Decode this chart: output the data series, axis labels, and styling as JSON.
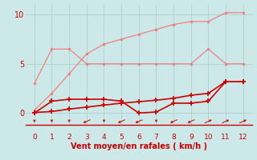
{
  "x": [
    0,
    1,
    2,
    3,
    4,
    5,
    6,
    7,
    8,
    9,
    10,
    11,
    12
  ],
  "line1_y": [
    3.0,
    6.5,
    6.5,
    5.0,
    5.0,
    5.0,
    5.0,
    5.0,
    5.0,
    5.0,
    6.5,
    5.0,
    5.0
  ],
  "line2_y": [
    0.3,
    2.0,
    4.0,
    6.0,
    7.0,
    7.5,
    8.0,
    8.5,
    9.0,
    9.3,
    9.3,
    10.2,
    10.2
  ],
  "line3_y": [
    0.0,
    1.2,
    1.4,
    1.4,
    1.4,
    1.2,
    0.0,
    0.1,
    1.0,
    1.0,
    1.2,
    3.2,
    3.2
  ],
  "line4_y": [
    0.05,
    0.15,
    0.4,
    0.6,
    0.8,
    1.0,
    1.15,
    1.3,
    1.5,
    1.8,
    2.0,
    3.2,
    3.2
  ],
  "line1_color": "#f08080",
  "line2_color": "#f08080",
  "line3_color": "#cc0000",
  "line4_color": "#cc0000",
  "bg_color": "#cce8e8",
  "grid_color": "#aacccc",
  "xlabel": "Vent moyen/en rafales ( km/h )",
  "xlabel_color": "#cc0000",
  "tick_color": "#cc0000",
  "ylim": [
    -1.2,
    11.0
  ],
  "xlim": [
    -0.5,
    12.5
  ],
  "yticks": [
    0,
    5,
    10
  ],
  "xticks": [
    0,
    1,
    2,
    3,
    4,
    5,
    6,
    7,
    8,
    9,
    10,
    11,
    12
  ],
  "arrow_dirs": [
    180,
    180,
    180,
    225,
    180,
    225,
    225,
    180,
    225,
    225,
    45,
    45,
    45
  ]
}
